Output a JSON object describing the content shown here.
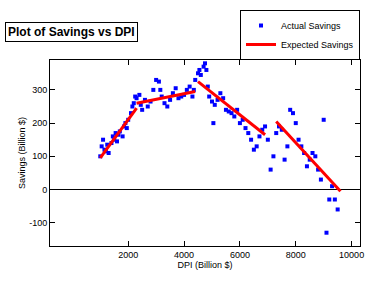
{
  "chart_data": {
    "type": "scatter",
    "title": "Plot of Savings vs DPI",
    "x_label": "DPI (Billion $)",
    "y_label": "Savings (Billion $)",
    "xlim": [
      -800,
      10300
    ],
    "xticks": [
      2000,
      4000,
      6000,
      8000,
      10000
    ],
    "ylim": [
      -170,
      390
    ],
    "yticks": [
      -100,
      0,
      100,
      200,
      300
    ],
    "grid": false,
    "legend": "top right",
    "series": [
      {
        "name": "Actual Savings",
        "type": "scatter",
        "marker": "square",
        "color": "#0000ff",
        "x": [
          1000,
          1050,
          1100,
          1150,
          1200,
          1250,
          1300,
          1400,
          1450,
          1500,
          1550,
          1600,
          1650,
          1700,
          1800,
          1850,
          1900,
          1950,
          2000,
          2100,
          2150,
          2200,
          2250,
          2300,
          2400,
          2450,
          2500,
          2600,
          2700,
          2800,
          2900,
          3000,
          3100,
          3150,
          3200,
          3300,
          3400,
          3500,
          3600,
          3700,
          3800,
          3900,
          4000,
          4100,
          4200,
          4300,
          4350,
          4400,
          4500,
          4550,
          4600,
          4700,
          4750,
          4800,
          4850,
          4900,
          5000,
          5050,
          5100,
          5200,
          5300,
          5400,
          5500,
          5600,
          5700,
          5800,
          5900,
          6000,
          6100,
          6200,
          6300,
          6400,
          6500,
          6600,
          6700,
          6800,
          6900,
          7000,
          7100,
          7200,
          7300,
          7400,
          7500,
          7600,
          7700,
          7800,
          7900,
          8000,
          8100,
          8200,
          8300,
          8400,
          8500,
          8600,
          8700,
          8800,
          8900,
          9000,
          9100,
          9200,
          9300,
          9400,
          9500
        ],
        "values": [
          100,
          130,
          150,
          120,
          115,
          135,
          110,
          140,
          160,
          150,
          170,
          145,
          165,
          175,
          160,
          190,
          200,
          185,
          210,
          230,
          250,
          260,
          280,
          275,
          285,
          255,
          240,
          270,
          250,
          265,
          300,
          330,
          325,
          300,
          280,
          260,
          250,
          270,
          290,
          305,
          275,
          280,
          285,
          300,
          310,
          280,
          300,
          330,
          350,
          360,
          345,
          370,
          380,
          360,
          310,
          280,
          265,
          200,
          255,
          270,
          290,
          275,
          240,
          235,
          230,
          220,
          240,
          200,
          210,
          185,
          170,
          150,
          120,
          130,
          160,
          180,
          190,
          150,
          60,
          100,
          170,
          190,
          180,
          90,
          130,
          240,
          230,
          200,
          150,
          130,
          110,
          70,
          90,
          110,
          100,
          60,
          30,
          210,
          -130,
          -30,
          10,
          -30,
          -60
        ]
      },
      {
        "name": "Expected Savings",
        "type": "line",
        "line_style": "solid",
        "color": "#ff0000",
        "x": [
          1000,
          2300,
          null,
          2300,
          4400,
          null,
          4500,
          6900,
          null,
          7300,
          9600
        ],
        "values": [
          95,
          245,
          null,
          260,
          295,
          null,
          325,
          165,
          null,
          205,
          -5
        ]
      }
    ]
  }
}
